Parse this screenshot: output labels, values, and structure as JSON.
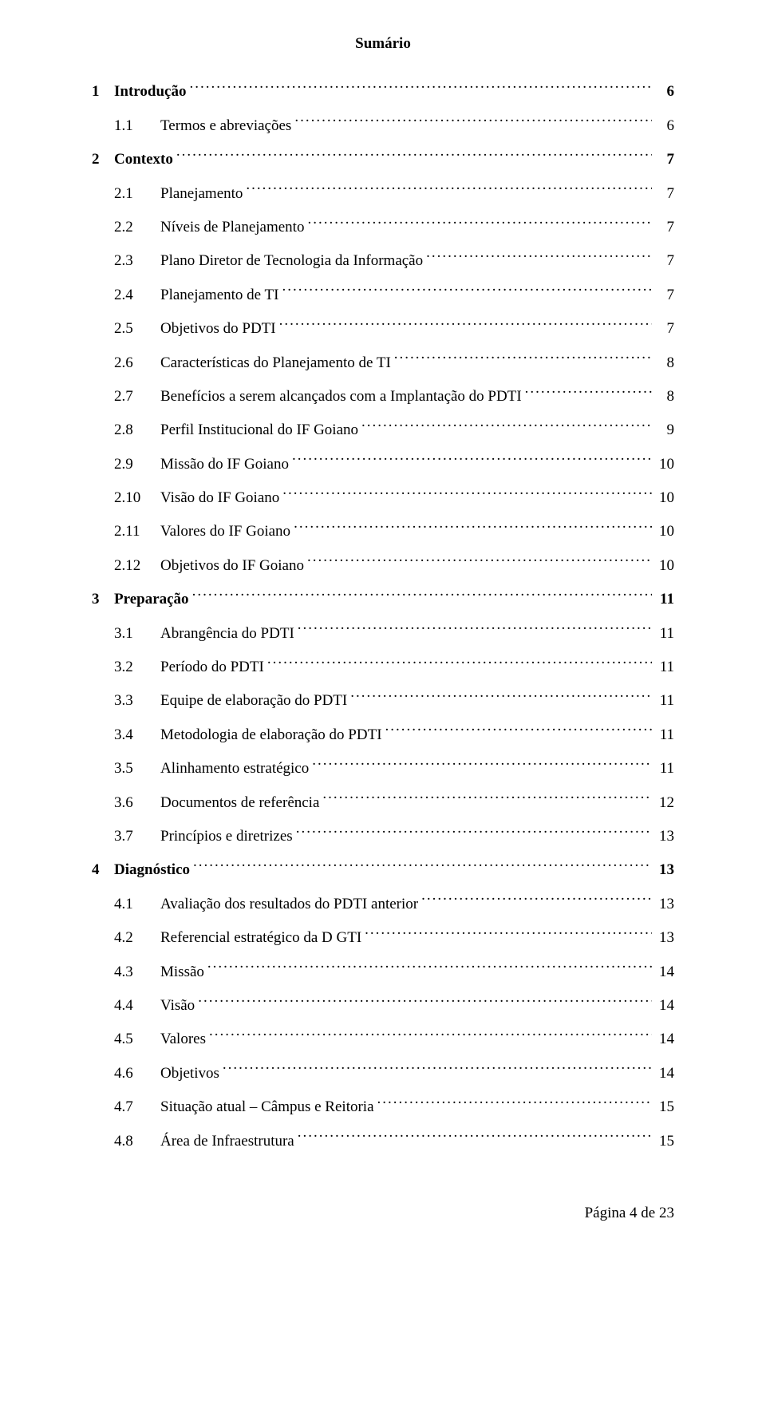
{
  "title": "Sumário",
  "footer": "Página 4 de 23",
  "entries": [
    {
      "num": "1",
      "label": "Introdução",
      "page": "6",
      "level": 0,
      "bold": true
    },
    {
      "num": "1.1",
      "label": "Termos e abreviações",
      "page": "6",
      "level": 1,
      "bold": false
    },
    {
      "num": "2",
      "label": "Contexto",
      "page": "7",
      "level": 0,
      "bold": true
    },
    {
      "num": "2.1",
      "label": "Planejamento",
      "page": "7",
      "level": 1,
      "bold": false
    },
    {
      "num": "2.2",
      "label": "Níveis de Planejamento",
      "page": "7",
      "level": 1,
      "bold": false
    },
    {
      "num": "2.3",
      "label": "Plano Diretor de Tecnologia da Informação",
      "page": "7",
      "level": 1,
      "bold": false
    },
    {
      "num": "2.4",
      "label": "Planejamento de TI",
      "page": "7",
      "level": 1,
      "bold": false
    },
    {
      "num": "2.5",
      "label": "Objetivos do PDTI",
      "page": "7",
      "level": 1,
      "bold": false
    },
    {
      "num": "2.6",
      "label": "Características do Planejamento de TI",
      "page": "8",
      "level": 1,
      "bold": false
    },
    {
      "num": "2.7",
      "label": "Benefícios a serem alcançados com a Implantação do PDTI",
      "page": "8",
      "level": 1,
      "bold": false
    },
    {
      "num": "2.8",
      "label": "Perfil Institucional do IF Goiano",
      "page": "9",
      "level": 1,
      "bold": false
    },
    {
      "num": "2.9",
      "label": "Missão do IF Goiano",
      "page": "10",
      "level": 1,
      "bold": false
    },
    {
      "num": "2.10",
      "label": "Visão do IF Goiano",
      "page": "10",
      "level": 1,
      "bold": false
    },
    {
      "num": "2.11",
      "label": "Valores do IF Goiano",
      "page": "10",
      "level": 1,
      "bold": false
    },
    {
      "num": "2.12",
      "label": "Objetivos do IF Goiano",
      "page": "10",
      "level": 1,
      "bold": false
    },
    {
      "num": "3",
      "label": "Preparação",
      "page": "11",
      "level": 0,
      "bold": true
    },
    {
      "num": "3.1",
      "label": "Abrangência do PDTI",
      "page": "11",
      "level": 1,
      "bold": false
    },
    {
      "num": "3.2",
      "label": "Período do PDTI",
      "page": "11",
      "level": 1,
      "bold": false
    },
    {
      "num": "3.3",
      "label": "Equipe de elaboração do PDTI",
      "page": "11",
      "level": 1,
      "bold": false
    },
    {
      "num": "3.4",
      "label": "Metodologia de elaboração do PDTI",
      "page": "11",
      "level": 1,
      "bold": false
    },
    {
      "num": "3.5",
      "label": "Alinhamento estratégico",
      "page": "11",
      "level": 1,
      "bold": false
    },
    {
      "num": "3.6",
      "label": "Documentos de referência",
      "page": "12",
      "level": 1,
      "bold": false
    },
    {
      "num": "3.7",
      "label": "Princípios e diretrizes",
      "page": "13",
      "level": 1,
      "bold": false
    },
    {
      "num": "4",
      "label": "Diagnóstico",
      "page": "13",
      "level": 0,
      "bold": true
    },
    {
      "num": "4.1",
      "label": "Avaliação dos resultados do PDTI anterior",
      "page": "13",
      "level": 1,
      "bold": false
    },
    {
      "num": "4.2",
      "label": "Referencial estratégico da D GTI",
      "page": "13",
      "level": 1,
      "bold": false
    },
    {
      "num": "4.3",
      "label": "Missão",
      "page": "14",
      "level": 1,
      "bold": false
    },
    {
      "num": "4.4",
      "label": "Visão",
      "page": "14",
      "level": 1,
      "bold": false
    },
    {
      "num": "4.5",
      "label": "Valores",
      "page": "14",
      "level": 1,
      "bold": false
    },
    {
      "num": "4.6",
      "label": "Objetivos",
      "page": "14",
      "level": 1,
      "bold": false
    },
    {
      "num": "4.7",
      "label": "Situação atual – Câmpus e Reitoria",
      "page": "15",
      "level": 1,
      "bold": false
    },
    {
      "num": "4.8",
      "label": "Área de Infraestrutura",
      "page": "15",
      "level": 1,
      "bold": false
    }
  ]
}
